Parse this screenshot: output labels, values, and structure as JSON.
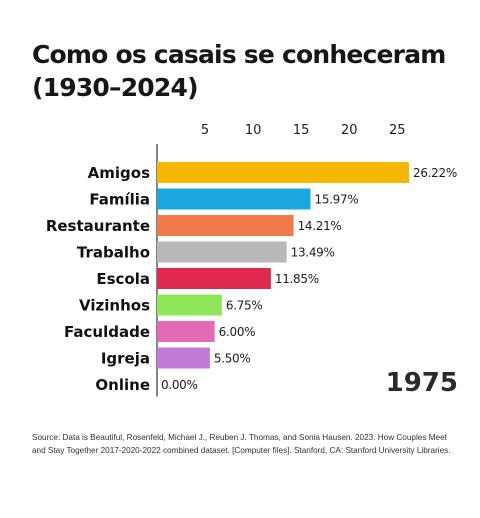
{
  "chart_data": {
    "type": "bar",
    "orientation": "horizontal",
    "title": "Como os casais se conheceram (1930–2024)",
    "categories": [
      "Amigos",
      "Família",
      "Restaurante",
      "Trabalho",
      "Escola",
      "Vizinhos",
      "Faculdade",
      "Igreja",
      "Online"
    ],
    "values": [
      26.22,
      15.97,
      14.21,
      13.49,
      11.85,
      6.75,
      6.0,
      5.5,
      0.0
    ],
    "value_labels": [
      "26.22%",
      "15.97%",
      "14.21%",
      "13.49%",
      "11.85%",
      "6.75%",
      "6.00%",
      "5.50%",
      "0.00%"
    ],
    "colors": [
      "#f5b800",
      "#1aa6de",
      "#f07a4a",
      "#b8b8b8",
      "#e0294f",
      "#8ee65a",
      "#e56ab5",
      "#c07ad8",
      "#cccccc"
    ],
    "x_ticks": [
      "5",
      "10",
      "15",
      "20",
      "25"
    ],
    "x_tick_values": [
      5,
      10,
      15,
      20,
      25
    ],
    "xlim": [
      0,
      26.22
    ],
    "axis_position": "top",
    "grid": false,
    "year": "1975"
  },
  "source_text": "Source: Data is Beautiful, Rosenfeld, Michael J., Reuben J. Thomas, and Sonia Hausen. 2023. How Couples Meet and Stay Together 2017-2020-2022 combined dataset. [Computer files]. Stanford, CA: Stanford University Libraries."
}
